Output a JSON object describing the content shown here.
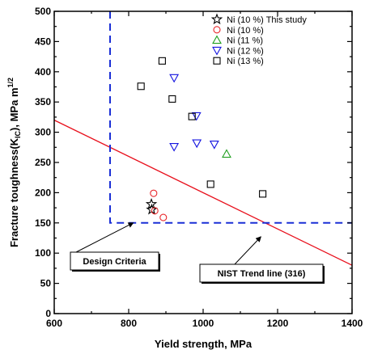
{
  "chart_data": {
    "type": "scatter",
    "xlabel": "Yield strength, MPa",
    "ylabel_main": "Fracture toughness(K",
    "ylabel_sub": "IC",
    "ylabel_unit": "), MPa m",
    "ylabel_sup": "1/2",
    "xlim": [
      600,
      1400
    ],
    "ylim": [
      0,
      500
    ],
    "x_ticks": [
      "600",
      "800",
      "1000",
      "1200",
      "1400"
    ],
    "y_ticks": [
      "0",
      "50",
      "100",
      "150",
      "200",
      "250",
      "300",
      "350",
      "400",
      "450",
      "500"
    ],
    "legend_position": "top-right",
    "series": [
      {
        "name": "Ni (10 %) This study",
        "marker": "star",
        "color": "#000000",
        "points": [
          [
            861,
            181
          ],
          [
            862,
            172
          ]
        ]
      },
      {
        "name": "Ni (10 %)",
        "marker": "circle",
        "color": "#e8282c",
        "points": [
          [
            867,
            199
          ],
          [
            870,
            170
          ],
          [
            893,
            159
          ]
        ]
      },
      {
        "name": "Ni (11 %)",
        "marker": "triangle-up",
        "color": "#1d9e1d",
        "points": [
          [
            1063,
            264
          ]
        ]
      },
      {
        "name": "Ni (12 %)",
        "marker": "triangle-down",
        "color": "#1515e0",
        "points": [
          [
            922,
            390
          ],
          [
            982,
            327
          ],
          [
            922,
            276
          ],
          [
            983,
            282
          ],
          [
            1030,
            280
          ]
        ]
      },
      {
        "name": "Ni (13 %)",
        "marker": "square",
        "color": "#000000",
        "points": [
          [
            890,
            418
          ],
          [
            833,
            376
          ],
          [
            917,
            355
          ],
          [
            970,
            326
          ],
          [
            1020,
            214
          ],
          [
            1160,
            198
          ]
        ]
      }
    ],
    "trend_line": {
      "color": "#e8101c",
      "points": [
        [
          600,
          320
        ],
        [
          1400,
          80
        ]
      ]
    },
    "design_criteria_line": {
      "color": "#1a2fd6",
      "points": [
        [
          750,
          500
        ],
        [
          750,
          150
        ],
        [
          1400,
          150
        ]
      ]
    },
    "annotations": [
      {
        "label": "Design Criteria",
        "target": [
          812,
          150
        ]
      },
      {
        "label": "NIST Trend line (316)",
        "target": [
          1155,
          127
        ]
      }
    ]
  }
}
